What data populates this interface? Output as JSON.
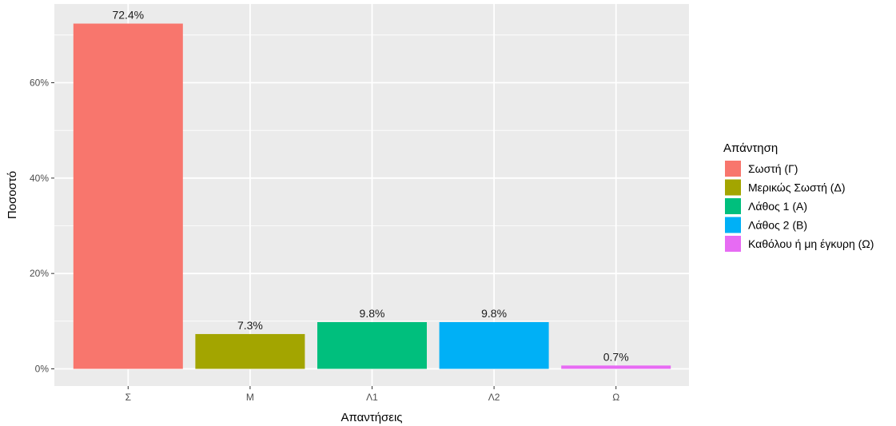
{
  "chart_data": {
    "type": "bar",
    "xlabel": "Απαντήσεις",
    "ylabel": "Ποσοστό",
    "ylim": [
      0,
      76
    ],
    "y_ticks": [
      0,
      20,
      40,
      60
    ],
    "y_tick_labels": [
      "0%",
      "20%",
      "40%",
      "60%"
    ],
    "grid": true,
    "legend_position": "right",
    "legend_title": "Απάντηση",
    "categories": [
      "Σ",
      "Μ",
      "Λ1",
      "Λ2",
      "Ω"
    ],
    "values": [
      72.4,
      7.3,
      9.8,
      9.8,
      0.7
    ],
    "value_labels": [
      "72.4%",
      "7.3%",
      "9.8%",
      "9.8%",
      "0.7%"
    ],
    "series_names": [
      "Σωστή (Γ)",
      "Μερικώς Σωστή (Δ)",
      "Λάθος 1 (Α)",
      "Λάθος 2 (Β)",
      "Καθόλου ή μη έγκυρη (Ω)"
    ],
    "colors": [
      "#f8766d",
      "#a3a500",
      "#00bf7d",
      "#00b0f6",
      "#e76bf3"
    ],
    "panel_background": "#ebebeb",
    "grid_color": "#ffffff"
  }
}
